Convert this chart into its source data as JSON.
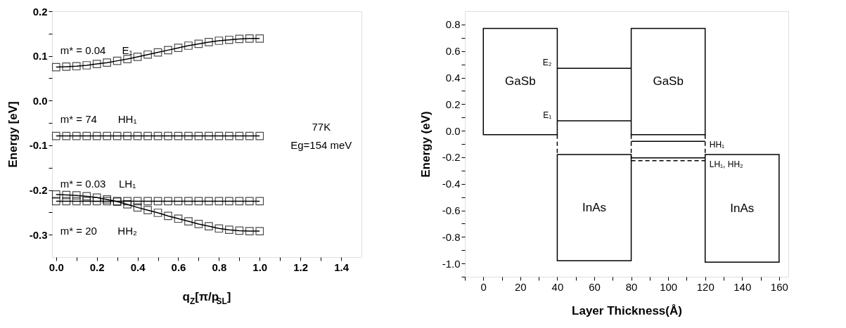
{
  "chart_data": [
    {
      "type": "line",
      "xlabel": "q$_{Z}$[π/p$_{SL}$]",
      "ylabel": "Energy [eV]",
      "marker": "square",
      "line_style": "solid",
      "grid": false,
      "xlim": [
        -0.02,
        1.5
      ],
      "xticks": [
        {
          "value": 0,
          "label": "0.0"
        },
        {
          "value": 0.1,
          "label": null
        },
        0.2,
        {
          "value": 0.3,
          "label": null
        },
        0.4,
        {
          "value": 0.5,
          "label": null
        },
        0.6,
        {
          "value": 0.7,
          "label": null
        },
        0.8,
        {
          "value": 0.9,
          "label": null
        },
        {
          "value": 1,
          "label": "1.0"
        },
        {
          "value": 1.1,
          "label": null
        },
        1.2,
        {
          "value": 1.3,
          "label": null
        },
        1.4
      ],
      "ylim": [
        -0.35,
        0.2
      ],
      "yticks": [
        -0.3,
        {
          "value": -0.25,
          "label": null
        },
        -0.2,
        {
          "value": -0.15,
          "label": null
        },
        -0.1,
        {
          "value": -0.05,
          "label": null
        },
        {
          "value": 0,
          "label": "0.0"
        },
        {
          "value": 0.05,
          "label": null
        },
        0.1,
        {
          "value": 0.15,
          "label": null
        },
        0.2
      ],
      "x": [
        0,
        0.05,
        0.1,
        0.15,
        0.2,
        0.25,
        0.3,
        0.35,
        0.4,
        0.45,
        0.5,
        0.55,
        0.6,
        0.65,
        0.7,
        0.75,
        0.8,
        0.85,
        0.9,
        0.95,
        1.0
      ],
      "series": [
        {
          "name": "E₁",
          "color": "#000000",
          "values": [
            0.075,
            0.076,
            0.077,
            0.079,
            0.082,
            0.085,
            0.089,
            0.093,
            0.098,
            0.103,
            0.108,
            0.113,
            0.118,
            0.123,
            0.127,
            0.131,
            0.134,
            0.136,
            0.138,
            0.139,
            0.139
          ]
        },
        {
          "name": "HH₁",
          "color": "#000000",
          "values": [
            -0.079,
            -0.079,
            -0.079,
            -0.079,
            -0.079,
            -0.079,
            -0.079,
            -0.079,
            -0.079,
            -0.079,
            -0.079,
            -0.079,
            -0.079,
            -0.079,
            -0.079,
            -0.079,
            -0.079,
            -0.079,
            -0.079,
            -0.079,
            -0.079
          ]
        },
        {
          "name": "LH₁",
          "color": "#000000",
          "values": [
            -0.225,
            -0.225,
            -0.225,
            -0.225,
            -0.225,
            -0.225,
            -0.225,
            -0.225,
            -0.225,
            -0.225,
            -0.225,
            -0.225,
            -0.225,
            -0.225,
            -0.225,
            -0.225,
            -0.225,
            -0.225,
            -0.225,
            -0.225,
            -0.225
          ]
        },
        {
          "name": "HH₂",
          "color": "#000000",
          "values": [
            -0.21,
            -0.211,
            -0.212,
            -0.214,
            -0.217,
            -0.221,
            -0.226,
            -0.232,
            -0.239,
            -0.245,
            -0.251,
            -0.258,
            -0.264,
            -0.27,
            -0.276,
            -0.281,
            -0.286,
            -0.289,
            -0.291,
            -0.292,
            -0.292
          ]
        }
      ],
      "annotations": [
        "m* = 0.04",
        "m* = 74",
        "m* = 0.03",
        "m* = 20",
        "77K",
        "Eg=154 meV"
      ]
    },
    {
      "type": "line",
      "xlabel": "Layer Thickness(Å)",
      "ylabel": "Energy (eV)",
      "marker": "none",
      "grid": false,
      "xlim": [
        -10,
        165
      ],
      "xticks": [
        {
          "value": -10,
          "label": null
        },
        0,
        {
          "value": 10,
          "label": null
        },
        20,
        {
          "value": 30,
          "label": null
        },
        40,
        {
          "value": 50,
          "label": null
        },
        60,
        {
          "value": 70,
          "label": null
        },
        80,
        {
          "value": 90,
          "label": null
        },
        100,
        {
          "value": 110,
          "label": null
        },
        120,
        {
          "value": 130,
          "label": null
        },
        140,
        {
          "value": 150,
          "label": null
        },
        160
      ],
      "ylim": [
        -1.1,
        0.9
      ],
      "yticks": [
        {
          "value": -1.1,
          "label": null
        },
        {
          "value": -1,
          "label": "-1.0"
        },
        {
          "value": -0.9,
          "label": null
        },
        -0.8,
        {
          "value": -0.7,
          "label": null
        },
        -0.6,
        {
          "value": -0.5,
          "label": null
        },
        -0.4,
        {
          "value": -0.3,
          "label": null
        },
        -0.2,
        {
          "value": -0.1,
          "label": null
        },
        {
          "value": 0,
          "label": "0.0"
        },
        {
          "value": 0.1,
          "label": null
        },
        0.2,
        {
          "value": 0.3,
          "label": null
        },
        0.4,
        {
          "value": 0.5,
          "label": null
        },
        0.6,
        {
          "value": 0.7,
          "label": null
        },
        0.8
      ],
      "series": [
        {
          "type": "bar",
          "name": "GaSb",
          "color": "#000000",
          "x": [
            20,
            100
          ],
          "base": [
            -0.03,
            -0.03
          ],
          "values": [
            0.8,
            0.8
          ]
        },
        {
          "type": "bar",
          "name": "InAs",
          "color": "#000000",
          "x": [
            60,
            140
          ],
          "base": [
            -0.98,
            -0.99
          ],
          "values": [
            0.8,
            0.81
          ]
        },
        {
          "color": "#000000",
          "line_style": "dashed",
          "x": [
            40,
            40
          ],
          "values": [
            -0.03,
            -0.18
          ]
        },
        {
          "color": "#000000",
          "line_style": "dashed",
          "x": [
            80,
            80
          ],
          "values": [
            -0.03,
            -0.21
          ]
        },
        {
          "color": "#000000",
          "line_style": "dashed",
          "x": [
            120,
            120
          ],
          "values": [
            -0.03,
            -0.18
          ]
        },
        {
          "name": "E₂",
          "color": "#000000",
          "line_style": "solid",
          "x": [
            40,
            80
          ],
          "values": [
            0.47,
            0.47
          ]
        },
        {
          "name": "E₁",
          "color": "#000000",
          "line_style": "solid",
          "x": [
            40,
            80
          ],
          "values": [
            0.075,
            0.075
          ]
        },
        {
          "name": "HH₁",
          "color": "#000000",
          "line_style": "solid",
          "x": [
            80,
            120
          ],
          "values": [
            -0.08,
            -0.08
          ]
        },
        {
          "color": "#000000",
          "line_style": "solid",
          "x": [
            80,
            120
          ],
          "values": [
            -0.205,
            -0.205
          ]
        },
        {
          "name": "LH₁, HH₂",
          "color": "#000000",
          "line_style": "dashed",
          "x": [
            80,
            120
          ],
          "values": [
            -0.225,
            -0.225
          ]
        }
      ]
    }
  ]
}
